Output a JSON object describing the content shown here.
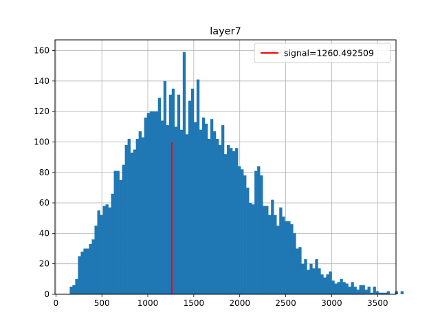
{
  "chart_data": {
    "type": "bar",
    "title": "layer7",
    "xlabel": "",
    "ylabel": "",
    "xlim": [
      -10,
      3700
    ],
    "ylim": [
      0,
      167
    ],
    "xticks": [
      0,
      500,
      1000,
      1500,
      2000,
      2500,
      3000,
      3500
    ],
    "yticks": [
      0,
      20,
      40,
      60,
      80,
      100,
      120,
      140,
      160
    ],
    "grid": true,
    "bar_color": "#1f77b4",
    "bin_edges_start": 150,
    "bin_width": 30,
    "values": [
      5,
      6,
      10,
      25,
      28,
      30,
      30,
      33,
      36,
      45,
      55,
      52,
      58,
      59,
      57,
      66,
      81,
      81,
      75,
      85,
      98,
      102,
      93,
      95,
      102,
      107,
      103,
      116,
      119,
      120,
      120,
      120,
      129,
      114,
      140,
      111,
      131,
      135,
      110,
      131,
      108,
      159,
      105,
      127,
      135,
      113,
      141,
      108,
      116,
      112,
      102,
      115,
      107,
      102,
      98,
      111,
      92,
      98,
      96,
      94,
      96,
      84,
      82,
      78,
      70,
      60,
      59,
      81,
      84,
      78,
      58,
      58,
      52,
      62,
      52,
      45,
      57,
      51,
      48,
      48,
      46,
      40,
      30,
      31,
      20,
      23,
      16,
      20,
      17,
      23,
      17,
      13,
      11,
      13,
      15,
      9,
      7,
      8,
      10,
      8,
      7,
      5,
      8,
      5,
      3,
      6,
      6,
      3,
      5,
      1,
      5,
      2,
      1,
      1,
      1,
      2,
      0,
      0,
      2,
      0,
      2
    ],
    "signal": {
      "x": 1260.492509,
      "y_top": 100,
      "color": "#ff0000",
      "label": "signal=1260.492509"
    },
    "legend": {
      "placement": "top-right"
    }
  }
}
